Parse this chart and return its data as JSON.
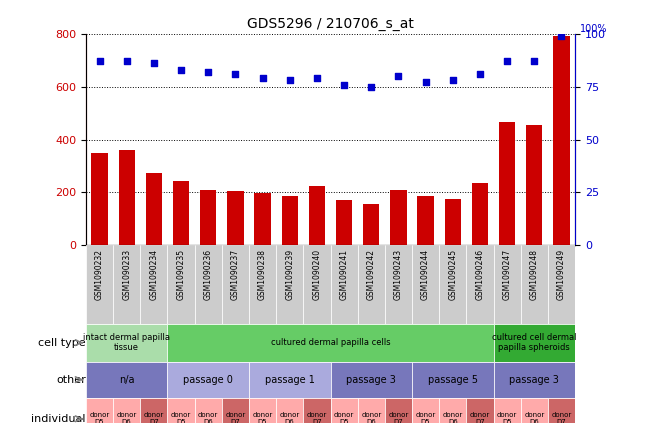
{
  "title": "GDS5296 / 210706_s_at",
  "samples": [
    "GSM1090232",
    "GSM1090233",
    "GSM1090234",
    "GSM1090235",
    "GSM1090236",
    "GSM1090237",
    "GSM1090238",
    "GSM1090239",
    "GSM1090240",
    "GSM1090241",
    "GSM1090242",
    "GSM1090243",
    "GSM1090244",
    "GSM1090245",
    "GSM1090246",
    "GSM1090247",
    "GSM1090248",
    "GSM1090249"
  ],
  "counts": [
    350,
    360,
    275,
    245,
    208,
    205,
    198,
    185,
    225,
    170,
    155,
    210,
    185,
    175,
    235,
    465,
    455,
    790
  ],
  "percentiles": [
    87,
    87,
    86,
    83,
    82,
    81,
    79,
    78,
    79,
    76,
    75,
    80,
    77,
    78,
    81,
    87,
    87,
    99
  ],
  "bar_color": "#cc0000",
  "dot_color": "#0000cc",
  "ylim_left": [
    0,
    800
  ],
  "ylim_right": [
    0,
    100
  ],
  "yticks_left": [
    0,
    200,
    400,
    600,
    800
  ],
  "yticks_right": [
    0,
    25,
    50,
    75,
    100
  ],
  "cell_type_groups": [
    {
      "label": "intact dermal papilla\ntissue",
      "start": 0,
      "end": 3,
      "color": "#aaddaa"
    },
    {
      "label": "cultured dermal papilla cells",
      "start": 3,
      "end": 15,
      "color": "#66cc66"
    },
    {
      "label": "cultured cell dermal\npapilla spheroids",
      "start": 15,
      "end": 18,
      "color": "#33aa33"
    }
  ],
  "other_groups": [
    {
      "label": "n/a",
      "start": 0,
      "end": 3,
      "color": "#7777bb"
    },
    {
      "label": "passage 0",
      "start": 3,
      "end": 6,
      "color": "#aaaadd"
    },
    {
      "label": "passage 1",
      "start": 6,
      "end": 9,
      "color": "#aaaadd"
    },
    {
      "label": "passage 3",
      "start": 9,
      "end": 12,
      "color": "#7777bb"
    },
    {
      "label": "passage 5",
      "start": 12,
      "end": 15,
      "color": "#7777bb"
    },
    {
      "label": "passage 3",
      "start": 15,
      "end": 18,
      "color": "#7777bb"
    }
  ],
  "individual_labels": [
    "donor\nD5",
    "donor\nD6",
    "donor\nD7",
    "donor\nD5",
    "donor\nD6",
    "donor\nD7",
    "donor\nD5",
    "donor\nD6",
    "donor\nD7",
    "donor\nD5",
    "donor\nD6",
    "donor\nD7",
    "donor\nD5",
    "donor\nD6",
    "donor\nD7",
    "donor\nD5",
    "donor\nD6",
    "donor\nD7"
  ],
  "individual_colors": [
    "#ffaaaa",
    "#ffaaaa",
    "#cc6666",
    "#ffaaaa",
    "#ffaaaa",
    "#cc6666",
    "#ffaaaa",
    "#ffaaaa",
    "#cc6666",
    "#ffaaaa",
    "#ffaaaa",
    "#cc6666",
    "#ffaaaa",
    "#ffaaaa",
    "#cc6666",
    "#ffaaaa",
    "#ffaaaa",
    "#cc6666"
  ],
  "bg_color": "#ffffff",
  "tick_label_color_left": "#cc0000",
  "tick_label_color_right": "#0000cc",
  "xtick_bg": "#cccccc",
  "legend_count_color": "#cc0000",
  "legend_pct_color": "#0000cc"
}
